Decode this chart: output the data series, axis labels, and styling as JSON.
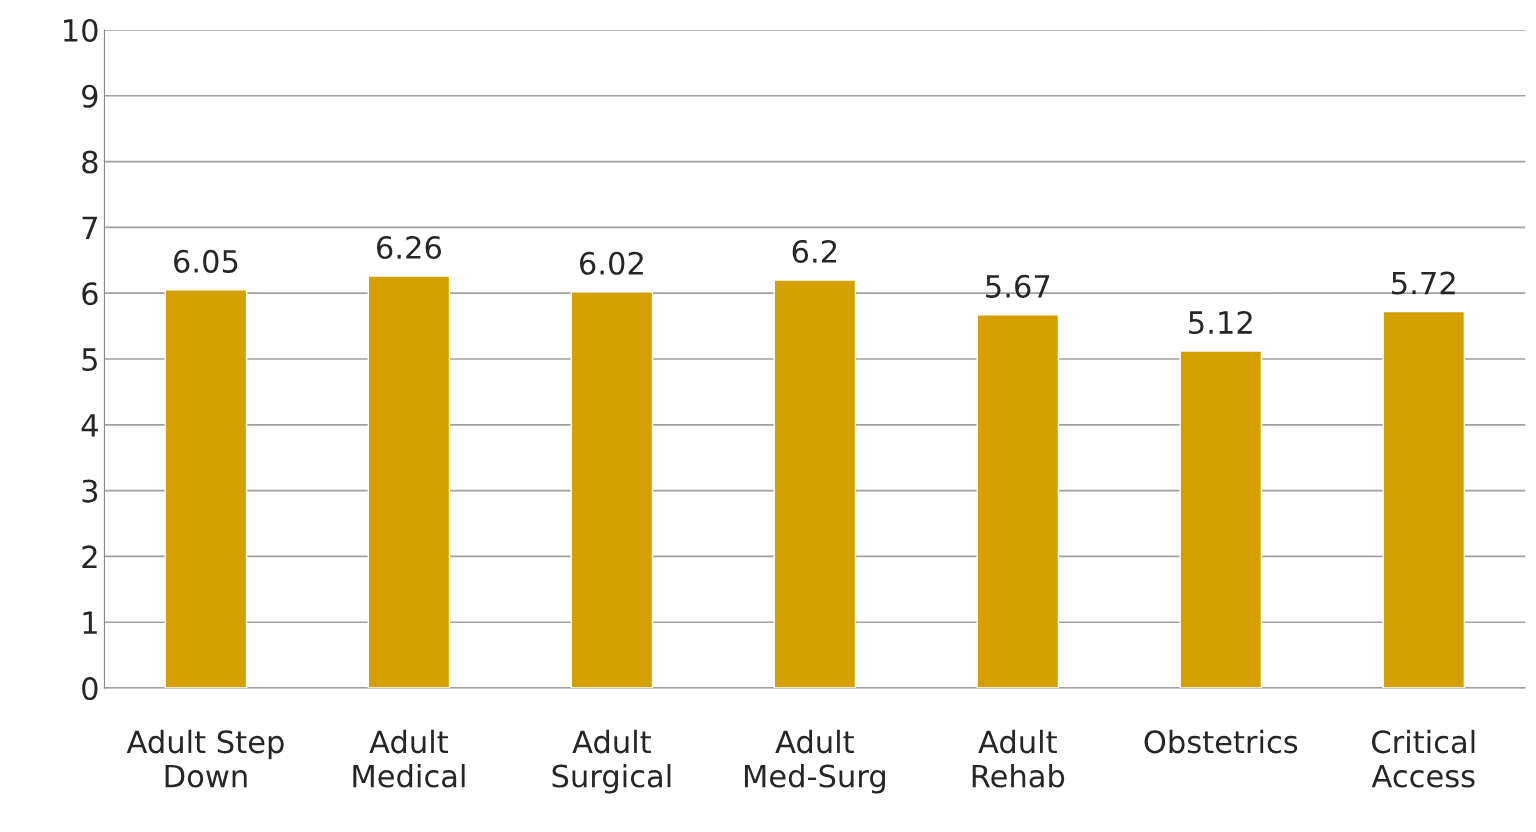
{
  "chart_data": {
    "type": "bar",
    "categories": [
      "Adult Step\nDown",
      "Adult\nMedical",
      "Adult\nSurgical",
      "Adult\nMed-Surg",
      "Adult\nRehab",
      "Obstetrics",
      "Critical\nAccess"
    ],
    "values": [
      6.05,
      6.26,
      6.02,
      6.2,
      5.67,
      5.12,
      5.72
    ],
    "color": "#d4a000",
    "ylim": [
      0,
      10
    ],
    "yticks": [
      0,
      1,
      2,
      3,
      4,
      5,
      6,
      7,
      8,
      9,
      10
    ],
    "grid": "y",
    "data_labels": true
  }
}
